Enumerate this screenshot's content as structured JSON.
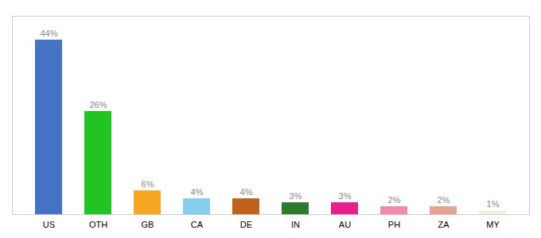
{
  "chart_data": {
    "type": "bar",
    "categories": [
      "US",
      "OTH",
      "GB",
      "CA",
      "DE",
      "IN",
      "AU",
      "PH",
      "ZA",
      "MY"
    ],
    "values": [
      44,
      26,
      6,
      4,
      4,
      3,
      3,
      2,
      2,
      1
    ],
    "value_labels": [
      "44%",
      "26%",
      "6%",
      "4%",
      "4%",
      "3%",
      "3%",
      "2%",
      "2%",
      "1%"
    ],
    "colors": [
      "#4472c4",
      "#21c421",
      "#f5a623",
      "#87ceeb",
      "#c0621a",
      "#2d7a2d",
      "#e91e8c",
      "#f48aaa",
      "#e8a090",
      "#f5f0dc"
    ],
    "ylim": [
      0,
      50
    ],
    "data_labels": true,
    "tick_labels": "x"
  }
}
